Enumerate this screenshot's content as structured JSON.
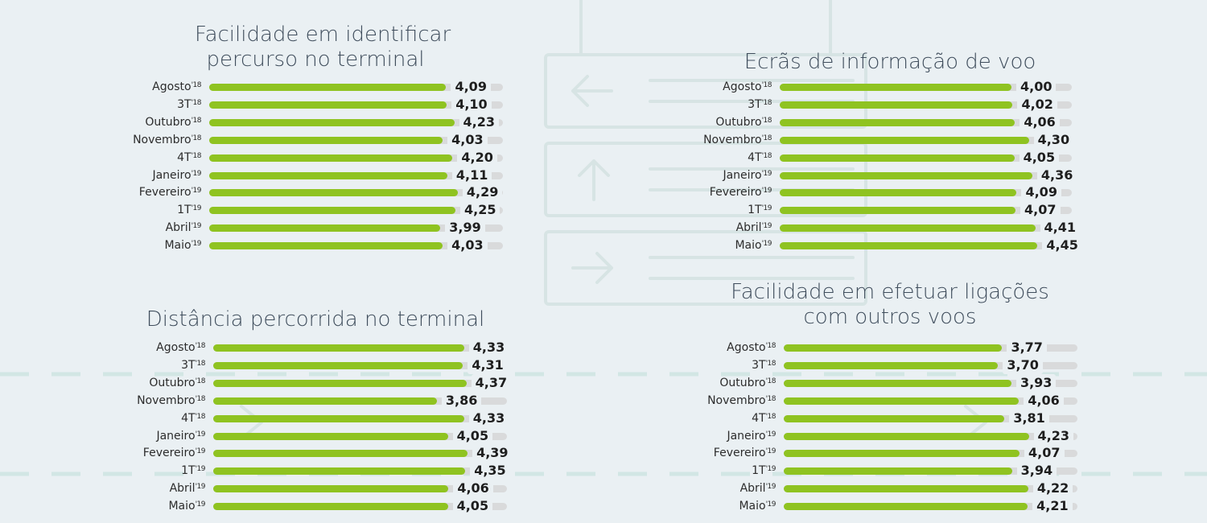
{
  "colors": {
    "background": "#eaf0f3",
    "bar_fill": "#8fc321",
    "bar_track": "#d9dadb",
    "text": "#2c2c2c",
    "title": "#3f4d5c"
  },
  "chart_data": [
    {
      "type": "bar",
      "orientation": "horizontal",
      "title_lines": [
        "Facilidade em identificar",
        "percurso no terminal"
      ],
      "categories": [
        {
          "name": "Agosto",
          "sup": "'18"
        },
        {
          "name": "3T",
          "sup": "'18"
        },
        {
          "name": "Outubro",
          "sup": "'18"
        },
        {
          "name": "Novembro",
          "sup": "'18"
        },
        {
          "name": "4T",
          "sup": "'18"
        },
        {
          "name": "Janeiro",
          "sup": "'19"
        },
        {
          "name": "Fevereiro",
          "sup": "'19"
        },
        {
          "name": "1T",
          "sup": "'19"
        },
        {
          "name": "Abril",
          "sup": "'19"
        },
        {
          "name": "Maio",
          "sup": "'19"
        }
      ],
      "values": [
        4.09,
        4.1,
        4.23,
        4.03,
        4.2,
        4.11,
        4.29,
        4.25,
        3.99,
        4.03
      ],
      "value_labels": [
        "4,09",
        "4,10",
        "4,23",
        "4,03",
        "4,20",
        "4,11",
        "4,29",
        "4,25",
        "3,99",
        "4,03"
      ],
      "xlim": [
        0,
        5
      ]
    },
    {
      "type": "bar",
      "orientation": "horizontal",
      "title_lines": [
        "Ecrãs de informação de voo"
      ],
      "categories": [
        {
          "name": "Agosto",
          "sup": "'18"
        },
        {
          "name": "3T",
          "sup": "'18"
        },
        {
          "name": "Outubro",
          "sup": "'18"
        },
        {
          "name": "Novembro",
          "sup": "'18"
        },
        {
          "name": "4T",
          "sup": "'18"
        },
        {
          "name": "Janeiro",
          "sup": "'19"
        },
        {
          "name": "Fevereiro",
          "sup": "'19"
        },
        {
          "name": "1T",
          "sup": "'19"
        },
        {
          "name": "Abril",
          "sup": "'19"
        },
        {
          "name": "Maio",
          "sup": "'19"
        }
      ],
      "values": [
        4.0,
        4.02,
        4.06,
        4.3,
        4.05,
        4.36,
        4.09,
        4.07,
        4.41,
        4.45
      ],
      "value_labels": [
        "4,00",
        "4,02",
        "4,06",
        "4,30",
        "4,05",
        "4,36",
        "4,09",
        "4,07",
        "4,41",
        "4,45"
      ],
      "xlim": [
        0,
        5
      ]
    },
    {
      "type": "bar",
      "orientation": "horizontal",
      "title_lines": [
        "Distância percorrida no terminal"
      ],
      "categories": [
        {
          "name": "Agosto",
          "sup": "'18"
        },
        {
          "name": "3T",
          "sup": "'18"
        },
        {
          "name": "Outubro",
          "sup": "'18"
        },
        {
          "name": "Novembro",
          "sup": "'18"
        },
        {
          "name": "4T",
          "sup": "'18"
        },
        {
          "name": "Janeiro",
          "sup": "'19"
        },
        {
          "name": "Fevereiro",
          "sup": "'19"
        },
        {
          "name": "1T",
          "sup": "'19"
        },
        {
          "name": "Abril",
          "sup": "'19"
        },
        {
          "name": "Maio",
          "sup": "'19"
        }
      ],
      "values": [
        4.33,
        4.31,
        4.37,
        3.86,
        4.33,
        4.05,
        4.39,
        4.35,
        4.06,
        4.05
      ],
      "value_labels": [
        "4,33",
        "4,31",
        "4,37",
        "3,86",
        "4,33",
        "4,05",
        "4,39",
        "4,35",
        "4,06",
        "4,05"
      ],
      "xlim": [
        0,
        5
      ]
    },
    {
      "type": "bar",
      "orientation": "horizontal",
      "title_lines": [
        "Facilidade em efetuar ligações",
        "com outros voos"
      ],
      "categories": [
        {
          "name": "Agosto",
          "sup": "'18"
        },
        {
          "name": "3T",
          "sup": "'18"
        },
        {
          "name": "Outubro",
          "sup": "'18"
        },
        {
          "name": "Novembro",
          "sup": "'18"
        },
        {
          "name": "4T",
          "sup": "'18"
        },
        {
          "name": "Janeiro",
          "sup": "'19"
        },
        {
          "name": "Fevereiro",
          "sup": "'19"
        },
        {
          "name": "1T",
          "sup": "'19"
        },
        {
          "name": "Abril",
          "sup": "'19"
        },
        {
          "name": "Maio",
          "sup": "'19"
        }
      ],
      "values": [
        3.77,
        3.7,
        3.93,
        4.06,
        3.81,
        4.23,
        4.07,
        3.94,
        4.22,
        4.21
      ],
      "value_labels": [
        "3,77",
        "3,70",
        "3,93",
        "4,06",
        "3,81",
        "4,23",
        "4,07",
        "3,94",
        "4,22",
        "4,21"
      ],
      "xlim": [
        0,
        5
      ]
    }
  ]
}
